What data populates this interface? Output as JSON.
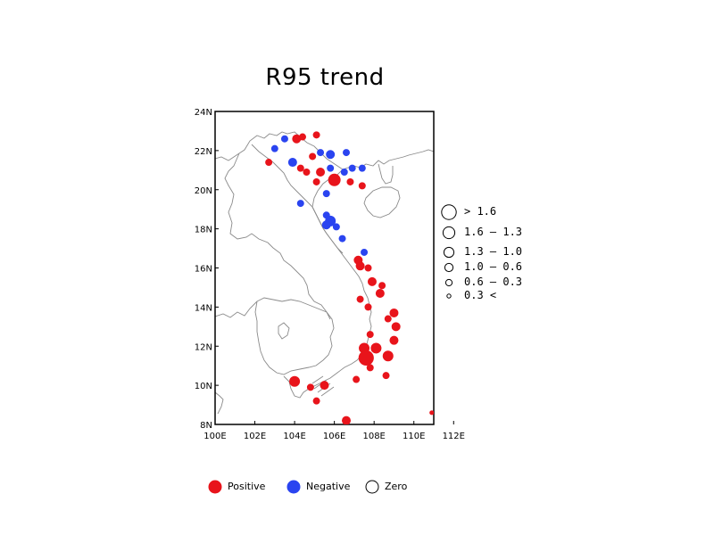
{
  "title": "R95 trend",
  "colors": {
    "positive": "#e8141b",
    "negative": "#2a44f0",
    "zero": "#ffffff",
    "coast": "#8a8a8a",
    "frame": "#000000"
  },
  "axes": {
    "lon_ticks": [
      "100E",
      "102E",
      "104E",
      "106E",
      "108E",
      "110E",
      "112E"
    ],
    "lat_ticks": [
      "8N",
      "10N",
      "12N",
      "14N",
      "16N",
      "18N",
      "20N",
      "22N",
      "24N"
    ],
    "lon_range": [
      100,
      111
    ],
    "lat_range": [
      8,
      24
    ]
  },
  "size_legend": [
    {
      "label": "> 1.6",
      "size": 6
    },
    {
      "label": "1.6 – 1.3",
      "size": 5
    },
    {
      "label": "1.3 – 1.0",
      "size": 4
    },
    {
      "label": "1.0 – 0.6",
      "size": 3
    },
    {
      "label": "0.6 – 0.3",
      "size": 2
    },
    {
      "label": "0.3 <",
      "size": 1
    }
  ],
  "sign_legend": [
    {
      "label": "Positive",
      "kind": "positive"
    },
    {
      "label": "Negative",
      "kind": "negative"
    },
    {
      "label": "Zero",
      "kind": "zero"
    }
  ],
  "stations": [
    {
      "lon": 103.5,
      "lat": 22.6,
      "sign": "negative",
      "size": 2
    },
    {
      "lon": 104.1,
      "lat": 22.6,
      "sign": "positive",
      "size": 3
    },
    {
      "lon": 104.4,
      "lat": 22.7,
      "sign": "positive",
      "size": 2
    },
    {
      "lon": 105.1,
      "lat": 22.8,
      "sign": "positive",
      "size": 2
    },
    {
      "lon": 103.0,
      "lat": 22.1,
      "sign": "negative",
      "size": 2
    },
    {
      "lon": 105.3,
      "lat": 21.9,
      "sign": "negative",
      "size": 2
    },
    {
      "lon": 105.8,
      "lat": 21.8,
      "sign": "negative",
      "size": 3
    },
    {
      "lon": 106.6,
      "lat": 21.9,
      "sign": "negative",
      "size": 2
    },
    {
      "lon": 104.9,
      "lat": 21.7,
      "sign": "positive",
      "size": 2
    },
    {
      "lon": 102.7,
      "lat": 21.4,
      "sign": "positive",
      "size": 2
    },
    {
      "lon": 103.9,
      "lat": 21.4,
      "sign": "negative",
      "size": 3
    },
    {
      "lon": 104.3,
      "lat": 21.1,
      "sign": "positive",
      "size": 2
    },
    {
      "lon": 105.8,
      "lat": 21.1,
      "sign": "negative",
      "size": 2
    },
    {
      "lon": 104.6,
      "lat": 20.9,
      "sign": "positive",
      "size": 2
    },
    {
      "lon": 105.3,
      "lat": 20.9,
      "sign": "positive",
      "size": 3
    },
    {
      "lon": 106.5,
      "lat": 20.9,
      "sign": "negative",
      "size": 2
    },
    {
      "lon": 106.9,
      "lat": 21.1,
      "sign": "negative",
      "size": 2
    },
    {
      "lon": 107.4,
      "lat": 21.1,
      "sign": "negative",
      "size": 2
    },
    {
      "lon": 105.1,
      "lat": 20.4,
      "sign": "positive",
      "size": 2
    },
    {
      "lon": 106.0,
      "lat": 20.5,
      "sign": "positive",
      "size": 5
    },
    {
      "lon": 106.8,
      "lat": 20.4,
      "sign": "positive",
      "size": 2
    },
    {
      "lon": 107.4,
      "lat": 20.2,
      "sign": "positive",
      "size": 2
    },
    {
      "lon": 105.6,
      "lat": 19.8,
      "sign": "negative",
      "size": 2
    },
    {
      "lon": 104.3,
      "lat": 19.3,
      "sign": "negative",
      "size": 2
    },
    {
      "lon": 105.6,
      "lat": 18.7,
      "sign": "negative",
      "size": 2
    },
    {
      "lon": 105.8,
      "lat": 18.4,
      "sign": "negative",
      "size": 4
    },
    {
      "lon": 105.6,
      "lat": 18.2,
      "sign": "negative",
      "size": 3
    },
    {
      "lon": 106.1,
      "lat": 18.1,
      "sign": "negative",
      "size": 2
    },
    {
      "lon": 106.4,
      "lat": 17.5,
      "sign": "negative",
      "size": 2
    },
    {
      "lon": 107.5,
      "lat": 16.8,
      "sign": "negative",
      "size": 2
    },
    {
      "lon": 107.2,
      "lat": 16.4,
      "sign": "positive",
      "size": 3
    },
    {
      "lon": 107.3,
      "lat": 16.1,
      "sign": "positive",
      "size": 3
    },
    {
      "lon": 107.7,
      "lat": 16.0,
      "sign": "positive",
      "size": 2
    },
    {
      "lon": 107.9,
      "lat": 15.3,
      "sign": "positive",
      "size": 3
    },
    {
      "lon": 108.4,
      "lat": 15.1,
      "sign": "positive",
      "size": 2
    },
    {
      "lon": 108.3,
      "lat": 14.7,
      "sign": "positive",
      "size": 3
    },
    {
      "lon": 107.3,
      "lat": 14.4,
      "sign": "positive",
      "size": 2
    },
    {
      "lon": 107.7,
      "lat": 14.0,
      "sign": "positive",
      "size": 2
    },
    {
      "lon": 109.0,
      "lat": 13.7,
      "sign": "positive",
      "size": 3
    },
    {
      "lon": 108.7,
      "lat": 13.4,
      "sign": "positive",
      "size": 2
    },
    {
      "lon": 109.1,
      "lat": 13.0,
      "sign": "positive",
      "size": 3
    },
    {
      "lon": 107.8,
      "lat": 12.6,
      "sign": "positive",
      "size": 2
    },
    {
      "lon": 109.0,
      "lat": 12.3,
      "sign": "positive",
      "size": 3
    },
    {
      "lon": 107.5,
      "lat": 11.9,
      "sign": "positive",
      "size": 4
    },
    {
      "lon": 108.1,
      "lat": 11.9,
      "sign": "positive",
      "size": 4
    },
    {
      "lon": 107.6,
      "lat": 11.4,
      "sign": "positive",
      "size": 6
    },
    {
      "lon": 108.7,
      "lat": 11.5,
      "sign": "positive",
      "size": 4
    },
    {
      "lon": 107.8,
      "lat": 10.9,
      "sign": "positive",
      "size": 2
    },
    {
      "lon": 108.6,
      "lat": 10.5,
      "sign": "positive",
      "size": 2
    },
    {
      "lon": 107.1,
      "lat": 10.3,
      "sign": "positive",
      "size": 2
    },
    {
      "lon": 104.0,
      "lat": 10.2,
      "sign": "positive",
      "size": 4
    },
    {
      "lon": 104.8,
      "lat": 9.9,
      "sign": "positive",
      "size": 2
    },
    {
      "lon": 105.5,
      "lat": 10.0,
      "sign": "positive",
      "size": 3
    },
    {
      "lon": 105.1,
      "lat": 9.2,
      "sign": "positive",
      "size": 2
    },
    {
      "lon": 106.6,
      "lat": 8.2,
      "sign": "positive",
      "size": 3
    },
    {
      "lon": 110.9,
      "lat": 8.6,
      "sign": "positive",
      "size": 1
    }
  ]
}
